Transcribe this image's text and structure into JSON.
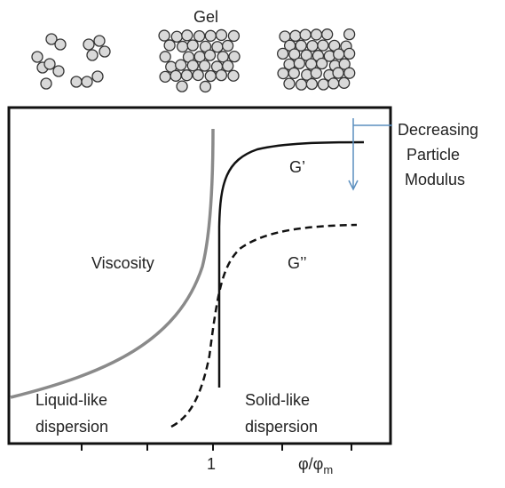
{
  "top_label": "Gel",
  "curves": {
    "storage_modulus": "G’",
    "loss_modulus": "G’’",
    "viscosity": "Viscosity"
  },
  "regions": {
    "liquid": [
      "Liquid-like",
      "dispersion"
    ],
    "solid": [
      "Solid-like",
      "dispersion"
    ]
  },
  "annotation": [
    "Decreasing",
    "Particle",
    "Modulus"
  ],
  "x_axis": {
    "tick_label": "1",
    "label": {
      "text": "φ/φ",
      "subscript": "m"
    }
  }
}
